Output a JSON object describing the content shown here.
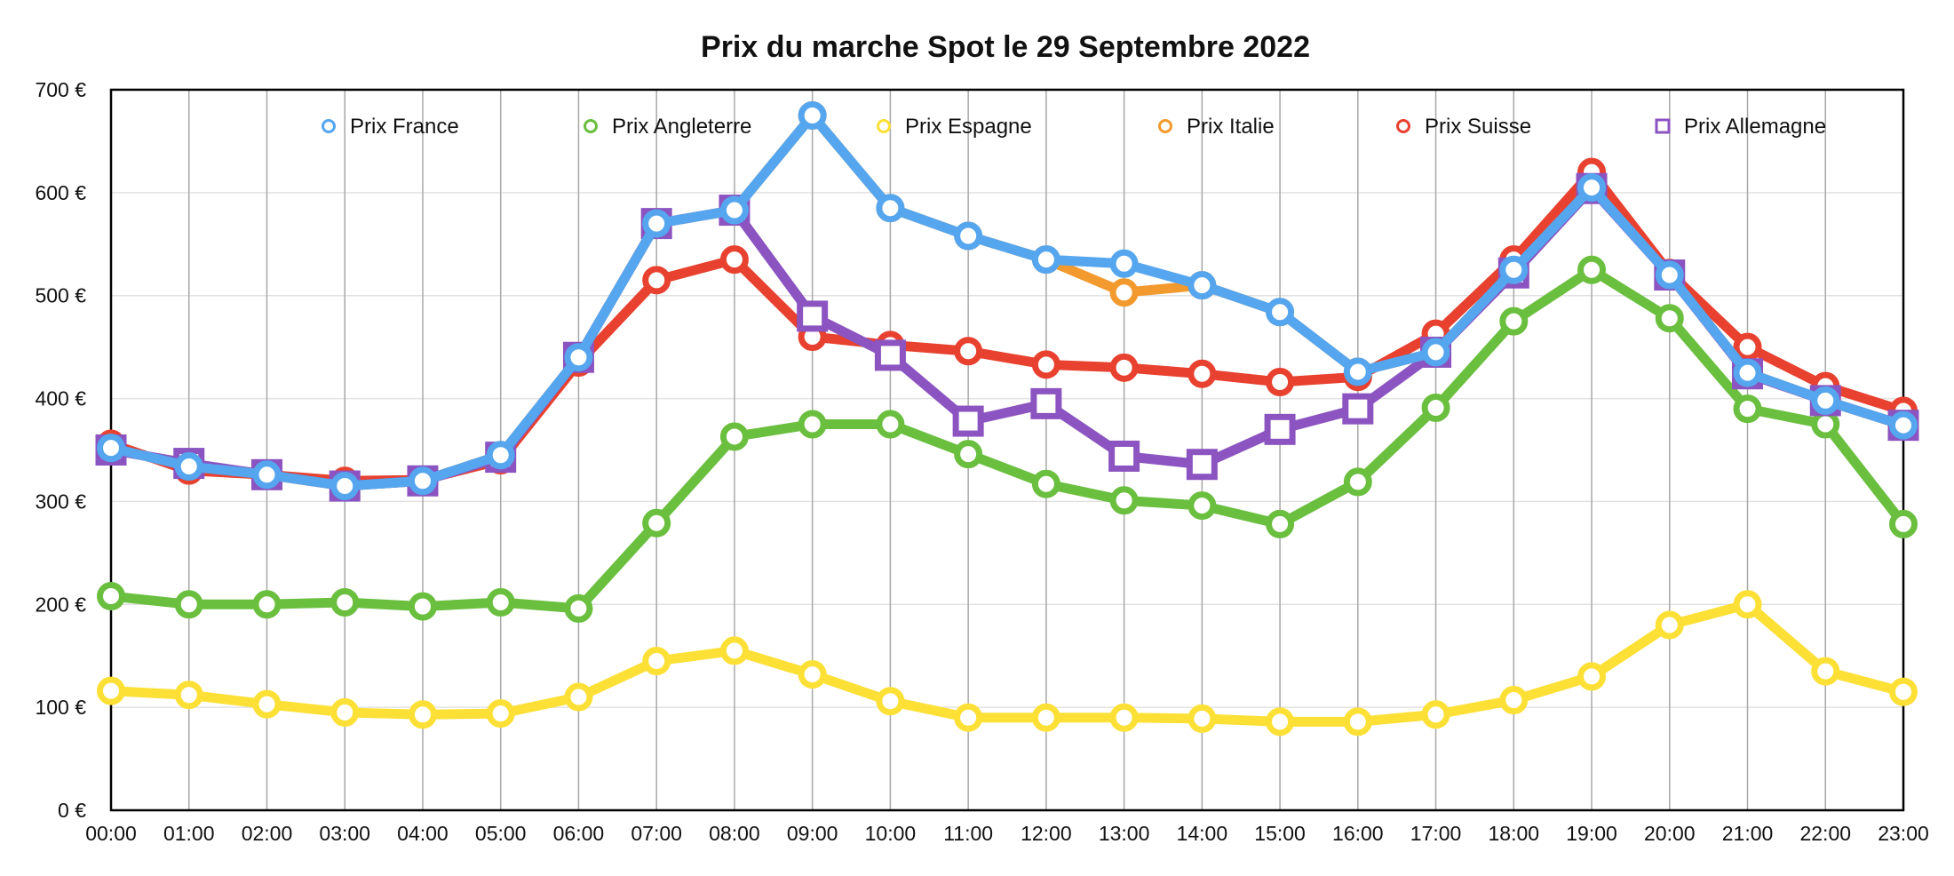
{
  "chart_data": {
    "type": "line",
    "title": "Prix du marche Spot le 29 Septembre 2022",
    "xlabel": "",
    "ylabel": "",
    "ylim": [
      0,
      700
    ],
    "yticks": [
      "0 €",
      "100 €",
      "200 €",
      "300 €",
      "400 €",
      "500 €",
      "600 €",
      "700 €"
    ],
    "grid": true,
    "legend_position": "top",
    "categories": [
      "00:00",
      "01:00",
      "02:00",
      "03:00",
      "04:00",
      "05:00",
      "06:00",
      "07:00",
      "08:00",
      "09:00",
      "10:00",
      "11:00",
      "12:00",
      "13:00",
      "14:00",
      "15:00",
      "16:00",
      "17:00",
      "18:00",
      "19:00",
      "20:00",
      "21:00",
      "22:00",
      "23:00"
    ],
    "series": [
      {
        "name": "Prix Espagne",
        "color": "#fde036",
        "marker": "circle",
        "values": [
          116,
          112,
          103,
          95,
          93,
          94,
          110,
          145,
          155,
          132,
          106,
          90,
          90,
          90,
          89,
          86,
          86,
          93,
          107,
          130,
          180,
          200,
          135,
          115
        ]
      },
      {
        "name": "Prix Angleterre",
        "color": "#6abf3f",
        "marker": "circle",
        "values": [
          208,
          200,
          200,
          202,
          198,
          202,
          196,
          279,
          363,
          375,
          375,
          346,
          317,
          301,
          296,
          278,
          319,
          391,
          475,
          525,
          478,
          390,
          375,
          278
        ]
      },
      {
        "name": "Prix Italie",
        "color": "#f29a2e",
        "marker": "circle",
        "values": [
          352,
          334,
          326,
          315,
          320,
          345,
          440,
          570,
          583,
          675,
          585,
          558,
          535,
          503,
          510,
          484,
          426,
          445,
          525,
          605,
          520,
          425,
          398,
          374
        ]
      },
      {
        "name": "Prix Suisse",
        "color": "#e8412f",
        "marker": "circle",
        "values": [
          356,
          330,
          326,
          320,
          321,
          340,
          435,
          515,
          535,
          460,
          452,
          446,
          433,
          430,
          424,
          416,
          421,
          463,
          535,
          620,
          522,
          450,
          412,
          388
        ]
      },
      {
        "name": "Prix Allemagne",
        "color": "#8b54c0",
        "marker": "square",
        "values": [
          350,
          337,
          326,
          315,
          320,
          343,
          440,
          570,
          583,
          480,
          442,
          378,
          395,
          344,
          336,
          370,
          390,
          445,
          522,
          604,
          520,
          424,
          398,
          374
        ]
      },
      {
        "name": "Prix France",
        "color": "#55a6ee",
        "marker": "circle",
        "values": [
          352,
          334,
          326,
          315,
          320,
          345,
          440,
          570,
          583,
          675,
          585,
          558,
          535,
          531,
          510,
          484,
          426,
          445,
          525,
          605,
          520,
          425,
          398,
          374
        ]
      }
    ],
    "legend_order": [
      "Prix France",
      "Prix Angleterre",
      "Prix Espagne",
      "Prix Italie",
      "Prix Suisse",
      "Prix Allemagne"
    ]
  }
}
